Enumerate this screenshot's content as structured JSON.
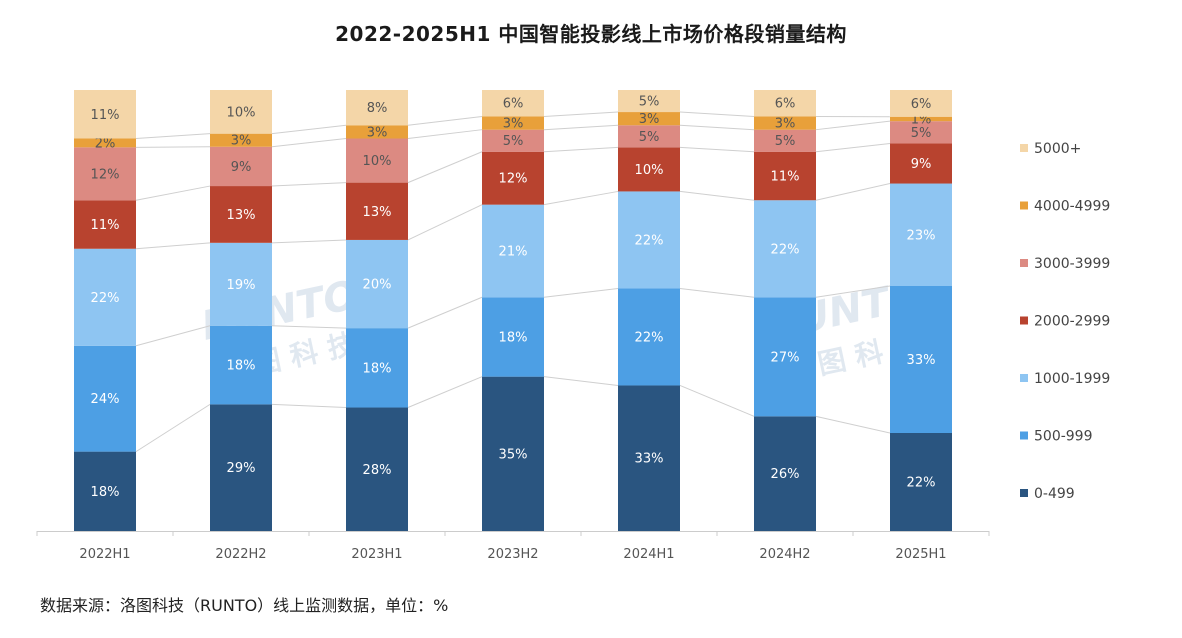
{
  "title": "2022-2025H1 中国智能投影线上市场价格段销量结构",
  "source": "数据来源：洛图科技（RUNTO）线上监测数据，单位：%",
  "watermark": {
    "brand": "RUNTO",
    "cn": "洛图科技"
  },
  "chart_data": {
    "type": "bar",
    "stacked": true,
    "percent_stacked": true,
    "title": "2022-2025H1 中国智能投影线上市场价格段销量结构",
    "xlabel": "",
    "ylabel": "",
    "legend_position": "right",
    "grid": false,
    "categories": [
      "2022H1",
      "2022H2",
      "2023H1",
      "2023H2",
      "2024H1",
      "2024H2",
      "2025H1"
    ],
    "series": [
      {
        "name": "0-499",
        "color": "#2a5580",
        "values": [
          18,
          29,
          28,
          35,
          33,
          26,
          22
        ]
      },
      {
        "name": "500-999",
        "color": "#4d9fe4",
        "values": [
          24,
          18,
          18,
          18,
          22,
          27,
          33
        ]
      },
      {
        "name": "1000-1999",
        "color": "#8ec5f2",
        "values": [
          22,
          19,
          20,
          21,
          22,
          22,
          23
        ]
      },
      {
        "name": "2000-2999",
        "color": "#b8432f",
        "values": [
          11,
          13,
          13,
          12,
          10,
          11,
          9
        ]
      },
      {
        "name": "3000-3999",
        "color": "#dc8a82",
        "values": [
          12,
          9,
          10,
          5,
          5,
          5,
          5
        ]
      },
      {
        "name": "4000-4999",
        "color": "#e8a03a",
        "values": [
          2,
          3,
          3,
          3,
          3,
          3,
          1
        ]
      },
      {
        "name": "5000+",
        "color": "#f4d6a8",
        "values": [
          11,
          10,
          8,
          6,
          5,
          6,
          6
        ]
      }
    ],
    "value_suffix": "%"
  }
}
